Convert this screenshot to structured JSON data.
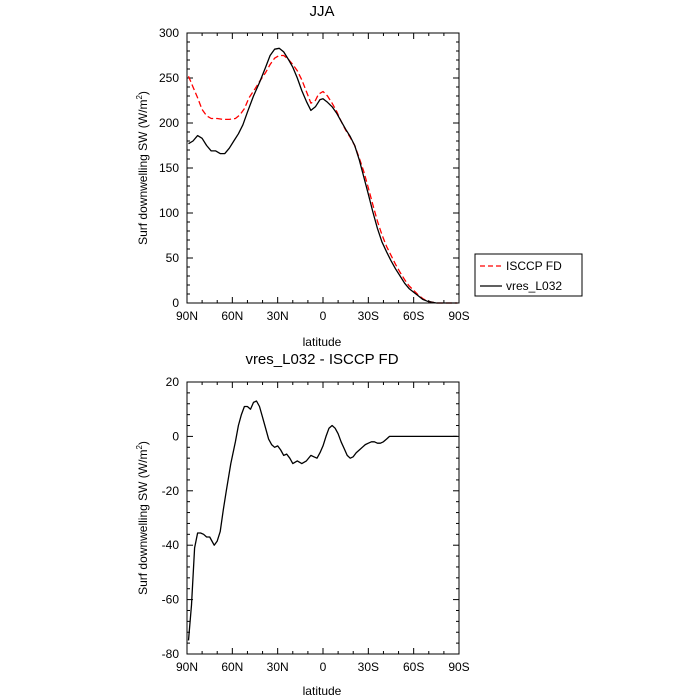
{
  "chart_data": [
    {
      "type": "line",
      "title": "JJA",
      "xlabel": "latitude",
      "ylabel": "Surf downwelling SW (W/m",
      "ylabel_sup": "2",
      "ylabel_close": ")",
      "xlim": [
        90,
        -90
      ],
      "ylim": [
        0,
        300
      ],
      "x_ticks": [
        90,
        60,
        30,
        0,
        -30,
        -60,
        -90
      ],
      "x_tick_labels": [
        "90N",
        "60N",
        "30N",
        "0",
        "30S",
        "60S",
        "90S"
      ],
      "y_ticks": [
        0,
        50,
        100,
        150,
        200,
        250,
        300
      ],
      "y_tick_labels": [
        "0",
        "50",
        "100",
        "150",
        "200",
        "250",
        "300"
      ],
      "legend_position": "right",
      "series": [
        {
          "name": "ISCCP FD",
          "color": "#ff0000",
          "dash": "dashed",
          "x": [
            89,
            86,
            83,
            80,
            77,
            74,
            70,
            66,
            62,
            58,
            55,
            52,
            49,
            45,
            42,
            38,
            35,
            32,
            29,
            26,
            23,
            20,
            17,
            14,
            11,
            8,
            5,
            3,
            0,
            -3,
            -6,
            -9,
            -12,
            -15,
            -18,
            -21,
            -24,
            -27,
            -30,
            -33,
            -36,
            -39,
            -42,
            -45,
            -48,
            -51,
            -54,
            -57,
            -60,
            -63,
            -66,
            -69,
            -72,
            -75,
            -78,
            -81,
            -84,
            -87,
            -89
          ],
          "values": [
            252,
            240,
            228,
            215,
            208,
            205,
            205,
            204,
            204,
            205,
            209,
            216,
            228,
            238,
            246,
            256,
            265,
            272,
            275,
            275,
            271,
            265,
            258,
            248,
            235,
            222,
            225,
            232,
            235,
            230,
            222,
            213,
            202,
            192,
            184,
            175,
            161,
            146,
            128,
            109,
            91,
            76,
            63,
            53,
            43,
            34,
            26,
            19,
            14,
            9,
            5,
            2,
            1,
            0,
            0,
            0,
            0,
            0,
            0
          ]
        },
        {
          "name": "vres_L032",
          "color": "#000000",
          "dash": "solid",
          "x": [
            89,
            86,
            83,
            80,
            77,
            74,
            71,
            68,
            65,
            62,
            59,
            56,
            53,
            50,
            46,
            42,
            38,
            35,
            32,
            29,
            26,
            23,
            20,
            17,
            14,
            11,
            8,
            5,
            2,
            0,
            -3,
            -6,
            -9,
            -12,
            -15,
            -18,
            -21,
            -24,
            -27,
            -30,
            -33,
            -36,
            -39,
            -42,
            -45,
            -48,
            -51,
            -54,
            -57,
            -60,
            -63,
            -66,
            -69,
            -72,
            -75,
            -78,
            -81,
            -84,
            -87,
            -89
          ],
          "values": [
            177,
            180,
            186,
            183,
            175,
            169,
            169,
            166,
            166,
            172,
            180,
            188,
            198,
            212,
            230,
            245,
            262,
            275,
            282,
            283,
            279,
            271,
            262,
            250,
            236,
            224,
            214,
            218,
            226,
            227,
            223,
            218,
            211,
            202,
            193,
            185,
            175,
            159,
            140,
            121,
            101,
            83,
            68,
            57,
            47,
            38,
            30,
            22,
            16,
            12,
            8,
            4,
            2,
            1,
            0,
            0,
            0,
            0,
            0,
            0
          ]
        }
      ]
    },
    {
      "type": "line",
      "title": "vres_L032 - ISCCP FD",
      "xlabel": "latitude",
      "ylabel": "Surf downwelling SW (W/m",
      "ylabel_sup": "2",
      "ylabel_close": ")",
      "xlim": [
        90,
        -90
      ],
      "ylim": [
        -80,
        20
      ],
      "x_ticks": [
        90,
        60,
        30,
        0,
        -30,
        -60,
        -90
      ],
      "x_tick_labels": [
        "90N",
        "60N",
        "30N",
        "0",
        "30S",
        "60S",
        "90S"
      ],
      "y_ticks": [
        -80,
        -60,
        -40,
        -20,
        0,
        20
      ],
      "y_tick_labels": [
        "-80",
        "-60",
        "-40",
        "-20",
        "0",
        "20"
      ],
      "series": [
        {
          "name": "vres_L032 - ISCCP FD",
          "color": "#000000",
          "dash": "solid",
          "x": [
            89,
            87,
            85,
            83,
            81,
            79,
            77,
            75,
            72,
            70,
            68,
            66,
            64,
            61,
            58,
            56,
            54,
            52,
            50,
            48,
            46,
            44,
            42,
            40,
            38,
            36,
            34,
            32,
            30,
            28,
            26,
            24,
            22,
            20,
            17,
            14,
            11,
            8,
            6,
            4,
            2,
            0,
            -2,
            -4,
            -6,
            -8,
            -10,
            -12,
            -14,
            -16,
            -18,
            -20,
            -22,
            -24,
            -26,
            -28,
            -30,
            -32,
            -34,
            -36,
            -38,
            -40,
            -42,
            -44,
            -46,
            -48,
            -50,
            -52,
            -54,
            -57,
            -60,
            -63,
            -66,
            -69,
            -72,
            -75,
            -78,
            -81,
            -84,
            -87,
            -89
          ],
          "values": [
            -75,
            -62,
            -41,
            -35.5,
            -35.5,
            -36,
            -37,
            -37,
            -40,
            -38.5,
            -35,
            -27,
            -20,
            -10,
            -2,
            4,
            8,
            11,
            11,
            10,
            12.5,
            13,
            11,
            7,
            3,
            -1,
            -3,
            -4,
            -3.5,
            -5,
            -7,
            -6.5,
            -8,
            -10,
            -9,
            -10,
            -9,
            -7,
            -7.5,
            -8,
            -6,
            -3.5,
            0,
            3,
            4,
            3,
            1,
            -2,
            -4.5,
            -7,
            -8,
            -7.5,
            -6,
            -5,
            -4,
            -3,
            -2.5,
            -2,
            -2,
            -2.5,
            -2.5,
            -2,
            -1,
            0,
            0,
            0,
            0,
            0,
            0,
            0,
            0,
            0,
            0,
            0,
            0,
            0,
            0,
            0,
            0,
            0,
            0
          ]
        }
      ]
    }
  ]
}
